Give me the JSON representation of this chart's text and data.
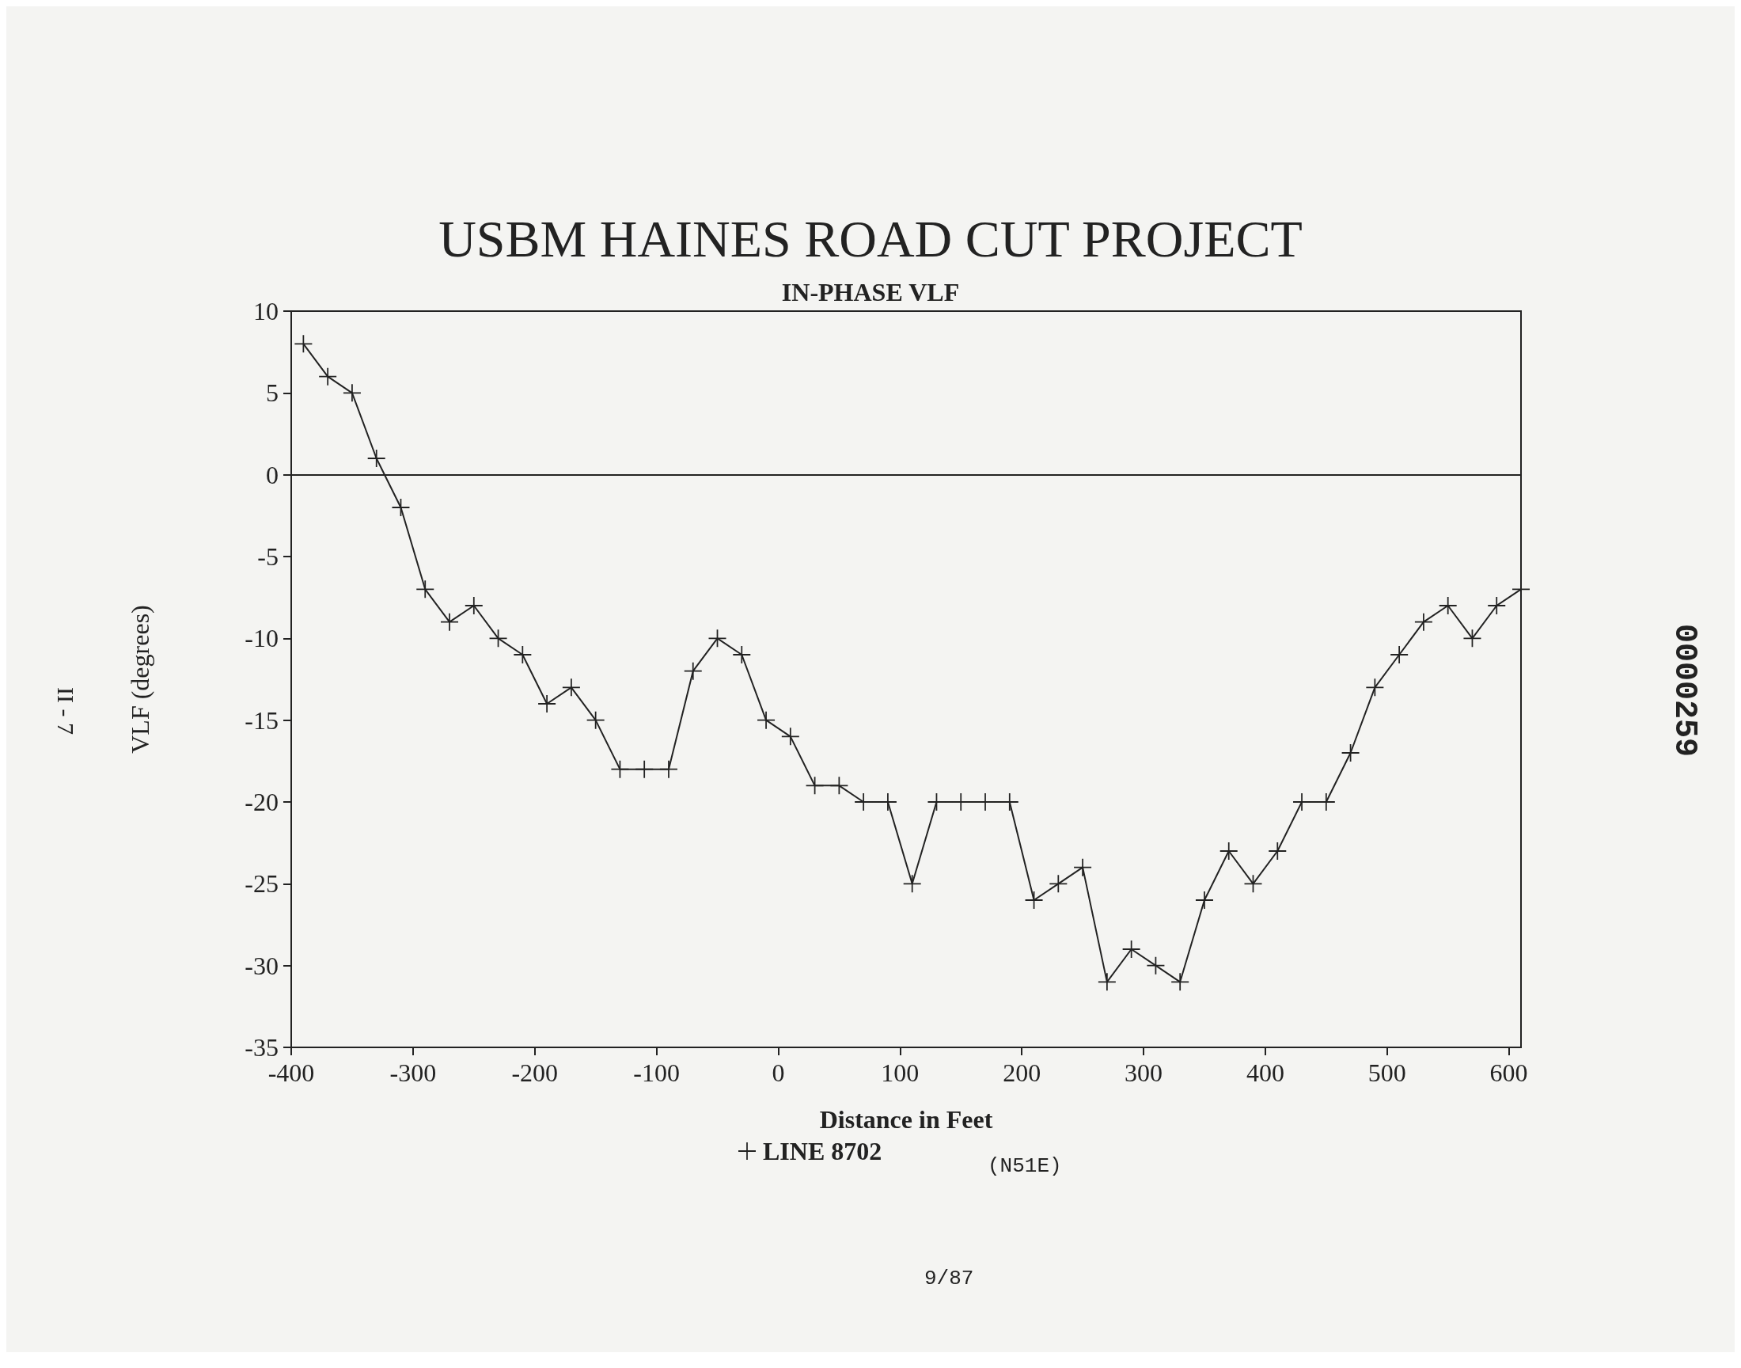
{
  "chart_data": {
    "type": "line",
    "title": "USBM HAINES ROAD CUT PROJECT",
    "subtitle": "IN-PHASE VLF",
    "xlabel": "Distance in Feet",
    "ylabel": "VLF (degrees)",
    "x": [
      -390,
      -370,
      -350,
      -330,
      -310,
      -290,
      -270,
      -250,
      -230,
      -210,
      -190,
      -170,
      -150,
      -130,
      -110,
      -90,
      -70,
      -50,
      -30,
      -10,
      10,
      30,
      50,
      70,
      90,
      110,
      130,
      150,
      170,
      190,
      210,
      230,
      250,
      270,
      290,
      310,
      330,
      350,
      370,
      390,
      410,
      430,
      450,
      470,
      490,
      510,
      530,
      550,
      570,
      590,
      610
    ],
    "series": [
      {
        "name": "LINE 8702",
        "color": "#222222",
        "values": [
          8,
          6,
          5,
          1,
          -2,
          -7,
          -9,
          -8,
          -10,
          -11,
          -14,
          -13,
          -15,
          -18,
          -18,
          -18,
          -12,
          -10,
          -11,
          -15,
          -16,
          -19,
          -19,
          -20,
          -20,
          -25,
          -20,
          -20,
          -20,
          -20,
          -26,
          -25,
          -24,
          -31,
          -29,
          -30,
          -31,
          -26,
          -23,
          -25,
          -23,
          -20,
          -20,
          -17,
          -13,
          -11,
          -9,
          -8,
          -10,
          -8,
          -7
        ]
      }
    ],
    "xlim": [
      -400,
      610
    ],
    "xticks": [
      -400,
      -300,
      -200,
      -100,
      0,
      100,
      200,
      300,
      400,
      500,
      600
    ],
    "ylim": [
      -35,
      10
    ],
    "yticks": [
      -35,
      -30,
      -25,
      -20,
      -15,
      -10,
      -5,
      0,
      5,
      10
    ],
    "ref_lines": [
      {
        "axis": "y",
        "value": 0,
        "color": "#222222"
      }
    ],
    "marker": "cross",
    "line_style": "solid",
    "grid": false,
    "legend": "bottom",
    "annotations": [
      "(N51E)",
      "9/87",
      "II - 7",
      "0000259"
    ]
  }
}
